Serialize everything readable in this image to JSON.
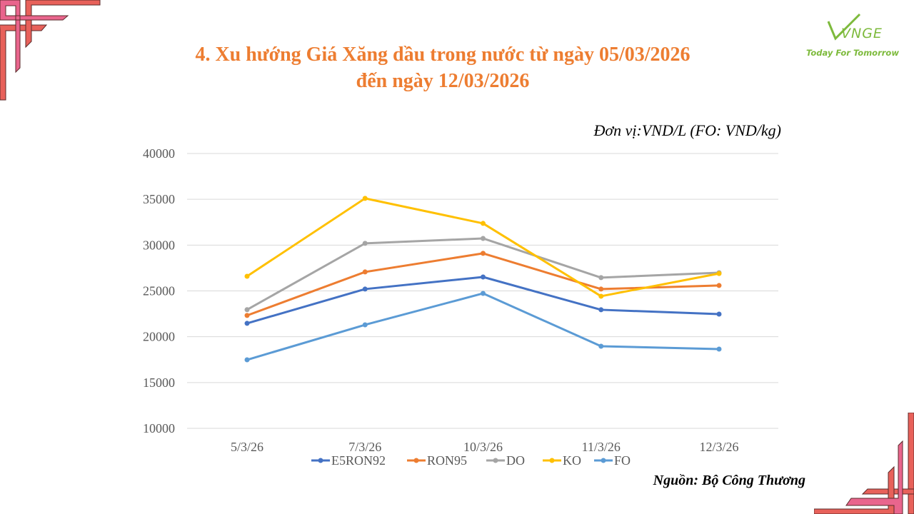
{
  "slide": {
    "title_line1": "4. Xu hướng Giá Xăng dầu trong nước từ ngày 05/03/2026",
    "title_line2": "đến ngày 12/03/2026",
    "unit": "Đơn vị:VND/L (FO: VND/kg)",
    "source": "Nguồn: Bộ Công Thương",
    "logo_text": "VNGE",
    "logo_tagline": "Today For Tomorrow",
    "accent_color": "#ED7D31"
  },
  "chart_data": {
    "type": "line",
    "categories": [
      "5/3/26",
      "7/3/26",
      "10/3/26",
      "11/3/26",
      "12/3/26"
    ],
    "ylim": [
      10000,
      40000
    ],
    "yticks": [
      10000,
      15000,
      20000,
      25000,
      30000,
      35000,
      40000
    ],
    "grid": true,
    "legend": "bottom",
    "series": [
      {
        "name": "E5RON92",
        "color": "#4472C4",
        "values": [
          21460,
          25200,
          26520,
          22940,
          22470
        ]
      },
      {
        "name": "RON95",
        "color": "#ED7D31",
        "values": [
          22320,
          27070,
          29100,
          25200,
          25590
        ]
      },
      {
        "name": "DO",
        "color": "#A5A5A5",
        "values": [
          22950,
          30190,
          30730,
          26450,
          26990
        ]
      },
      {
        "name": "KO",
        "color": "#FFC000",
        "values": [
          26600,
          35100,
          32370,
          24420,
          26900
        ]
      },
      {
        "name": "FO",
        "color": "#5B9BD5",
        "values": [
          17480,
          21300,
          24730,
          18960,
          18650
        ]
      }
    ]
  }
}
